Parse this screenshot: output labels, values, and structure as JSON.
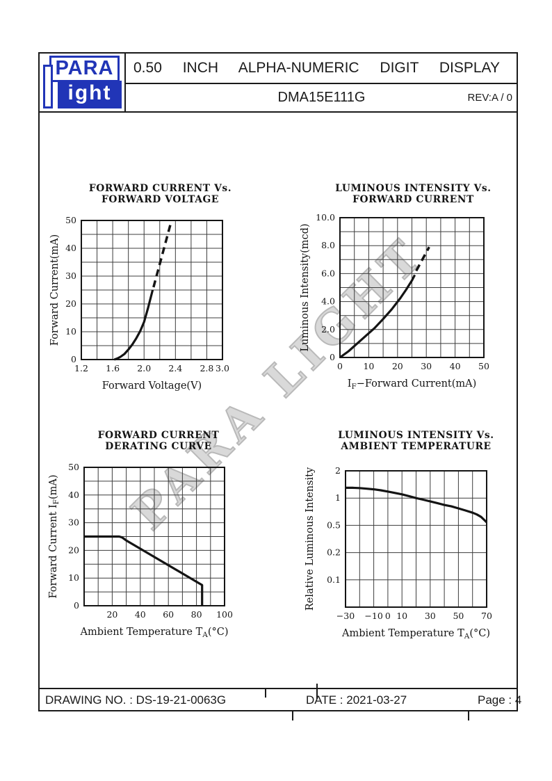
{
  "page": {
    "header": {
      "logo_line1": "PARA",
      "logo_line2": "ight",
      "product_title": "0.50 INCH ALPHA-NUMERIC DIGIT DISPLAY",
      "part_number": "DMA15E111G",
      "revision": "REV:A / 0"
    },
    "watermark": "PARA LIGHT",
    "footer": {
      "drawing_no": "DRAWING NO. : DS-19-21-0063G",
      "date": "DATE : 2021-03-27",
      "page": "Page : 4"
    }
  },
  "colors": {
    "brand_blue": "#2135b7",
    "line_black": "#141414",
    "grid_gray": "#3c3c3c",
    "watermark_gray": "#b9b9b9"
  },
  "chart_data": [
    {
      "type": "line",
      "name": "forward-current-vs-forward-voltage",
      "title_lines": [
        "FORWARD CURRENT Vs.",
        "FORWARD VOLTAGE"
      ],
      "xlabel_parts": [
        {
          "text": "Forward Voltage(V)"
        }
      ],
      "ylabel_parts": [
        {
          "text": "Forward Current(mA)"
        }
      ],
      "xlim": [
        1.2,
        3.0
      ],
      "ylim": [
        0,
        50
      ],
      "x_grid_step": 0.2,
      "y_grid_step": 5,
      "yscale": "linear",
      "grid": true,
      "legend": "none",
      "xticks": [
        {
          "v": 1.2,
          "label": "1.2"
        },
        {
          "v": 1.6,
          "label": "1.6"
        },
        {
          "v": 2.0,
          "label": "2.0"
        },
        {
          "v": 2.4,
          "label": "2.4"
        },
        {
          "v": 2.8,
          "label": "2.8"
        },
        {
          "v": 3.0,
          "label": "3.0"
        }
      ],
      "yticks": [
        {
          "v": 0,
          "label": "0"
        },
        {
          "v": 10,
          "label": "10"
        },
        {
          "v": 20,
          "label": "20"
        },
        {
          "v": 30,
          "label": "30"
        },
        {
          "v": 40,
          "label": "40"
        },
        {
          "v": 50,
          "label": "50"
        }
      ],
      "series": [
        {
          "name": "vf-if-solid",
          "style": "solid",
          "points": [
            [
              1.62,
              0
            ],
            [
              1.66,
              0.4
            ],
            [
              1.7,
              1.0
            ],
            [
              1.75,
              2.0
            ],
            [
              1.8,
              3.6
            ],
            [
              1.85,
              5.4
            ],
            [
              1.9,
              7.6
            ],
            [
              1.95,
              10.2
            ],
            [
              2.0,
              13.5
            ],
            [
              2.05,
              18.5
            ],
            [
              2.11,
              25.0
            ]
          ]
        },
        {
          "name": "vf-if-dashed",
          "style": "dashed",
          "points": [
            [
              2.12,
              26.0
            ],
            [
              2.35,
              50.0
            ]
          ]
        }
      ]
    },
    {
      "type": "line",
      "name": "luminous-intensity-vs-forward-current",
      "title_lines": [
        "LUMINOUS INTENSITY Vs.",
        "FORWARD CURRENT"
      ],
      "xlabel_parts": [
        {
          "text": "I"
        },
        {
          "text": "F",
          "sub": true
        },
        {
          "text": "−Forward Current(mA)"
        }
      ],
      "ylabel_parts": [
        {
          "text": "Luminous Intensity(mcd)"
        }
      ],
      "xlim": [
        0,
        50
      ],
      "ylim": [
        0,
        10
      ],
      "x_grid_step": 5,
      "y_grid_step": 1,
      "yscale": "linear",
      "grid": true,
      "legend": "none",
      "xticks": [
        {
          "v": 0,
          "label": "0"
        },
        {
          "v": 10,
          "label": "10"
        },
        {
          "v": 20,
          "label": "20"
        },
        {
          "v": 30,
          "label": "30"
        },
        {
          "v": 40,
          "label": "40"
        },
        {
          "v": 50,
          "label": "50"
        }
      ],
      "yticks": [
        {
          "v": 0,
          "label": "0"
        },
        {
          "v": 2,
          "label": "2.0"
        },
        {
          "v": 4,
          "label": "4.0"
        },
        {
          "v": 6,
          "label": "6.0"
        },
        {
          "v": 8,
          "label": "8.0"
        },
        {
          "v": 10,
          "label": "10.0"
        }
      ],
      "series": [
        {
          "name": "iv-if-solid",
          "style": "solid",
          "points": [
            [
              0,
              0
            ],
            [
              3,
              0.45
            ],
            [
              6,
              1.0
            ],
            [
              9,
              1.55
            ],
            [
              12,
              2.1
            ],
            [
              15,
              2.75
            ],
            [
              18,
              3.45
            ],
            [
              21,
              4.25
            ],
            [
              23,
              4.85
            ],
            [
              25,
              5.5
            ],
            [
              26,
              5.9
            ]
          ]
        },
        {
          "name": "iv-if-dashed",
          "style": "dashed",
          "points": [
            [
              26.5,
              6.2
            ],
            [
              31,
              7.9
            ]
          ]
        }
      ]
    },
    {
      "type": "line",
      "name": "forward-current-derating-curve",
      "title_lines": [
        "FORWARD CURRENT",
        "DERATING CURVE"
      ],
      "xlabel_parts": [
        {
          "text": "Ambient Temperature T"
        },
        {
          "text": "A",
          "sub": true
        },
        {
          "text": "(°C)"
        }
      ],
      "ylabel_parts": [
        {
          "text": "Forward Current I"
        },
        {
          "text": "F",
          "sub": true
        },
        {
          "text": "(mA)"
        }
      ],
      "xlim": [
        0,
        100
      ],
      "ylim": [
        0,
        50
      ],
      "x_grid_step": 10,
      "y_grid_step": 5,
      "yscale": "linear",
      "grid": true,
      "legend": "none",
      "xticks": [
        {
          "v": 20,
          "label": "20"
        },
        {
          "v": 40,
          "label": "40"
        },
        {
          "v": 60,
          "label": "60"
        },
        {
          "v": 80,
          "label": "80"
        },
        {
          "v": 100,
          "label": "100"
        }
      ],
      "yticks": [
        {
          "v": 0,
          "label": "0"
        },
        {
          "v": 10,
          "label": "10"
        },
        {
          "v": 20,
          "label": "20"
        },
        {
          "v": 30,
          "label": "30"
        },
        {
          "v": 40,
          "label": "40"
        },
        {
          "v": 50,
          "label": "50"
        }
      ],
      "series": [
        {
          "name": "derating-solid",
          "style": "solid",
          "points": [
            [
              0,
              25
            ],
            [
              25,
              25
            ],
            [
              27,
              24.7
            ],
            [
              30,
              23.6
            ],
            [
              84,
              7.5
            ],
            [
              84,
              0
            ]
          ]
        }
      ]
    },
    {
      "type": "line",
      "name": "luminous-intensity-vs-ambient-temperature",
      "title_lines": [
        "LUMINOUS INTENSITY Vs.",
        "AMBIENT TEMPERATURE"
      ],
      "xlabel_parts": [
        {
          "text": "Ambient Temperature T"
        },
        {
          "text": "A",
          "sub": true
        },
        {
          "text": "(°C)"
        }
      ],
      "ylabel_parts": [
        {
          "text": "Relative Luminous Intensity"
        }
      ],
      "xlim": [
        -30,
        70
      ],
      "x_grid_step": 10,
      "yscale": "logticks",
      "ylog_ticks": [
        2,
        1,
        0.5,
        0.2,
        0.1,
        0.045
      ],
      "grid": true,
      "legend": "none",
      "xticks": [
        {
          "v": -30,
          "label": "−30"
        },
        {
          "v": -10,
          "label": "−10"
        },
        {
          "v": 0,
          "label": "0"
        },
        {
          "v": 10,
          "label": "10"
        },
        {
          "v": 30,
          "label": "30"
        },
        {
          "v": 50,
          "label": "50"
        },
        {
          "v": 70,
          "label": "70"
        }
      ],
      "yticks": [
        {
          "v": 2,
          "label": "2"
        },
        {
          "v": 1,
          "label": "1"
        },
        {
          "v": 0.5,
          "label": "0.5"
        },
        {
          "v": 0.2,
          "label": "0.2"
        },
        {
          "v": 0.1,
          "label": "0.1"
        }
      ],
      "series": [
        {
          "name": "iv-ta-solid",
          "style": "solid",
          "points": [
            [
              -30,
              1.3
            ],
            [
              -25,
              1.3
            ],
            [
              -20,
              1.29
            ],
            [
              -15,
              1.27
            ],
            [
              -10,
              1.25
            ],
            [
              -5,
              1.22
            ],
            [
              0,
              1.18
            ],
            [
              5,
              1.14
            ],
            [
              10,
              1.1
            ],
            [
              15,
              1.05
            ],
            [
              20,
              1.0
            ],
            [
              25,
              0.96
            ],
            [
              30,
              0.92
            ],
            [
              35,
              0.88
            ],
            [
              40,
              0.84
            ],
            [
              45,
              0.81
            ],
            [
              50,
              0.77
            ],
            [
              55,
              0.73
            ],
            [
              60,
              0.69
            ],
            [
              63,
              0.66
            ],
            [
              66,
              0.62
            ],
            [
              68,
              0.58
            ],
            [
              70,
              0.54
            ]
          ]
        }
      ]
    }
  ]
}
